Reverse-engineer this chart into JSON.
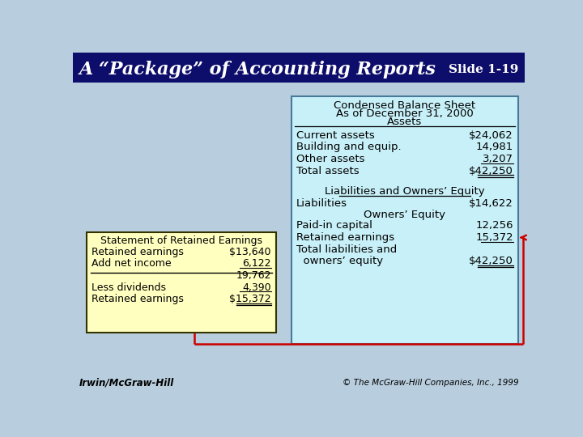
{
  "title": "A “Package” of Accounting Reports",
  "slide_num": "Slide 1-19",
  "bg_color": "#b8cede",
  "header_bg": "#0d0d6b",
  "header_text_color": "#ffffff",
  "balance_sheet_bg": "#c8f0f8",
  "balance_sheet_border": "#4a7a9b",
  "retained_earnings_bg": "#ffffc0",
  "retained_earnings_border": "#333300",
  "footer_left": "Irwin/McGraw-Hill",
  "footer_right": "© The McGraw-Hill Companies, Inc., 1999",
  "balance_sheet_title1": "Condensed Balance Sheet",
  "balance_sheet_title2": "As of December 31, 2000",
  "balance_sheet_title3": "Assets",
  "assets": [
    [
      "Current assets",
      "$24,062"
    ],
    [
      "Building and equip.",
      "14,981"
    ],
    [
      "Other assets",
      "3,207"
    ],
    [
      "Total assets",
      "$42,250"
    ]
  ],
  "liabilities_header": "Liabilities and Owners’ Equity",
  "owners_equity_header": "Owners’ Equity",
  "owners_equity": [
    [
      "Liabilities",
      "$14,622"
    ],
    [
      "Paid-in capital",
      "12,256"
    ],
    [
      "Retained earnings",
      "15,372"
    ],
    [
      "Total liabilities and",
      ""
    ],
    [
      "   owners’ equity",
      "$42,250"
    ]
  ],
  "re_title": "Statement of Retained Earnings",
  "re_items": [
    [
      "Retained earnings",
      "$13,640"
    ],
    [
      "Add net income",
      "6,122"
    ],
    [
      "",
      "19,762"
    ],
    [
      "Less dividends",
      "4,390"
    ],
    [
      "Retained earnings",
      "$15,372"
    ]
  ],
  "arrow_color": "#cc0000"
}
